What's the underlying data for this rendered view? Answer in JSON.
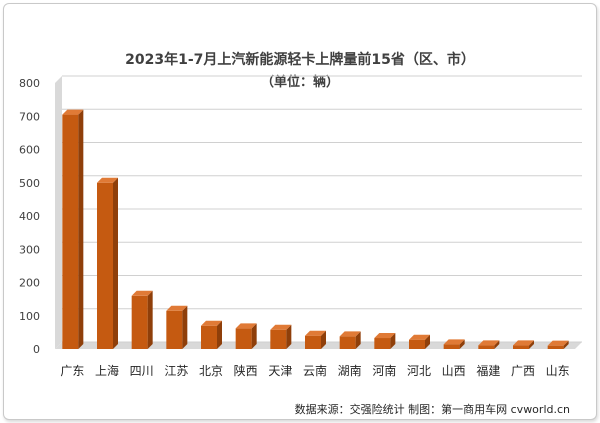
{
  "chart_data": {
    "type": "bar",
    "title": "2023年1-7月上汽新能源轻卡上牌量前15省（区、市）",
    "subtitle": "（单位：辆）",
    "categories": [
      "广东",
      "上海",
      "四川",
      "江苏",
      "北京",
      "陕西",
      "天津",
      "云南",
      "湖南",
      "河南",
      "河北",
      "山西",
      "福建",
      "广西",
      "山东"
    ],
    "values": [
      705,
      500,
      160,
      115,
      70,
      62,
      58,
      40,
      38,
      33,
      28,
      14,
      11,
      11,
      10
    ],
    "ylim": [
      0,
      800
    ],
    "yticks": [
      "0",
      "100",
      "200",
      "300",
      "400",
      "500",
      "600",
      "700",
      "800"
    ],
    "grid": true,
    "legend": "none",
    "colors": {
      "bar_front": "#c55a11",
      "bar_side": "#8f3f0a",
      "bar_top": "#e07a36",
      "wall": "#d9d9d9",
      "grid": "#d0d0d0"
    }
  },
  "footer": {
    "source": "数据来源：交强险统计 制图：第一商用车网 cvworld.cn"
  }
}
